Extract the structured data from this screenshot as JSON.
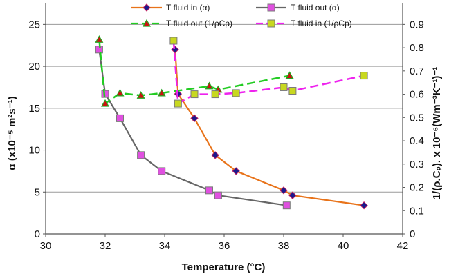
{
  "chart_data": {
    "type": "line",
    "title": "",
    "xlabel": "Temperature (°C)",
    "ylabel": "α (x10⁻⁵ m²s⁻¹)",
    "y2label": "1/(ρ.Cₚ). x 10⁻⁶(Wm⁻³K⁻¹)⁻¹",
    "xlim": [
      30,
      42
    ],
    "ylim": [
      0,
      27.5
    ],
    "y2lim": [
      0,
      0.99
    ],
    "xticks": [
      "30",
      "32",
      "34",
      "36",
      "38",
      "40",
      "42"
    ],
    "yticks": [
      "0",
      "5",
      "10",
      "15",
      "20",
      "25"
    ],
    "y2ticks": [
      "0",
      "0.1",
      "0.2",
      "0.3",
      "0.4",
      "0.5",
      "0.6",
      "0.7",
      "0.8",
      "0.9"
    ],
    "grid": "horizontal",
    "legend_position": "top",
    "series": [
      {
        "name": "T fluid in (α)",
        "axis": "left",
        "color": "#E8731A",
        "marker": "diamond",
        "marker_color": "#1A1A8C",
        "dashed": false,
        "x": [
          34.35,
          34.45,
          35.0,
          35.7,
          36.4,
          38.0,
          38.3,
          40.7
        ],
        "y": [
          22.0,
          16.7,
          13.8,
          9.4,
          7.5,
          5.2,
          4.6,
          3.4
        ]
      },
      {
        "name": "T fluid out (α)",
        "axis": "left",
        "color": "#666666",
        "marker": "square",
        "marker_color": "#E050E0",
        "dashed": false,
        "x": [
          31.8,
          32.0,
          32.5,
          33.2,
          33.9,
          35.5,
          35.8,
          38.1
        ],
        "y": [
          22.0,
          16.7,
          13.8,
          9.4,
          7.5,
          5.2,
          4.6,
          3.4
        ]
      },
      {
        "name": "T fluid out (1/ρCp)",
        "axis": "right",
        "color": "#22CC22",
        "marker": "triangle",
        "marker_color": "#CC1111",
        "dashed": true,
        "x": [
          31.8,
          32.0,
          32.5,
          33.2,
          33.9,
          35.5,
          35.8,
          38.2
        ],
        "y": [
          0.835,
          0.56,
          0.605,
          0.595,
          0.605,
          0.635,
          0.62,
          0.68
        ]
      },
      {
        "name": "T fluid in (1/ρCp)",
        "axis": "right",
        "color": "#EE22EE",
        "marker": "square",
        "marker_color": "#C8D820",
        "dashed": true,
        "x": [
          34.3,
          34.45,
          35.0,
          35.7,
          36.4,
          38.0,
          38.3,
          40.7
        ],
        "y": [
          0.83,
          0.56,
          0.6,
          0.6,
          0.605,
          0.63,
          0.615,
          0.68
        ]
      }
    ]
  }
}
